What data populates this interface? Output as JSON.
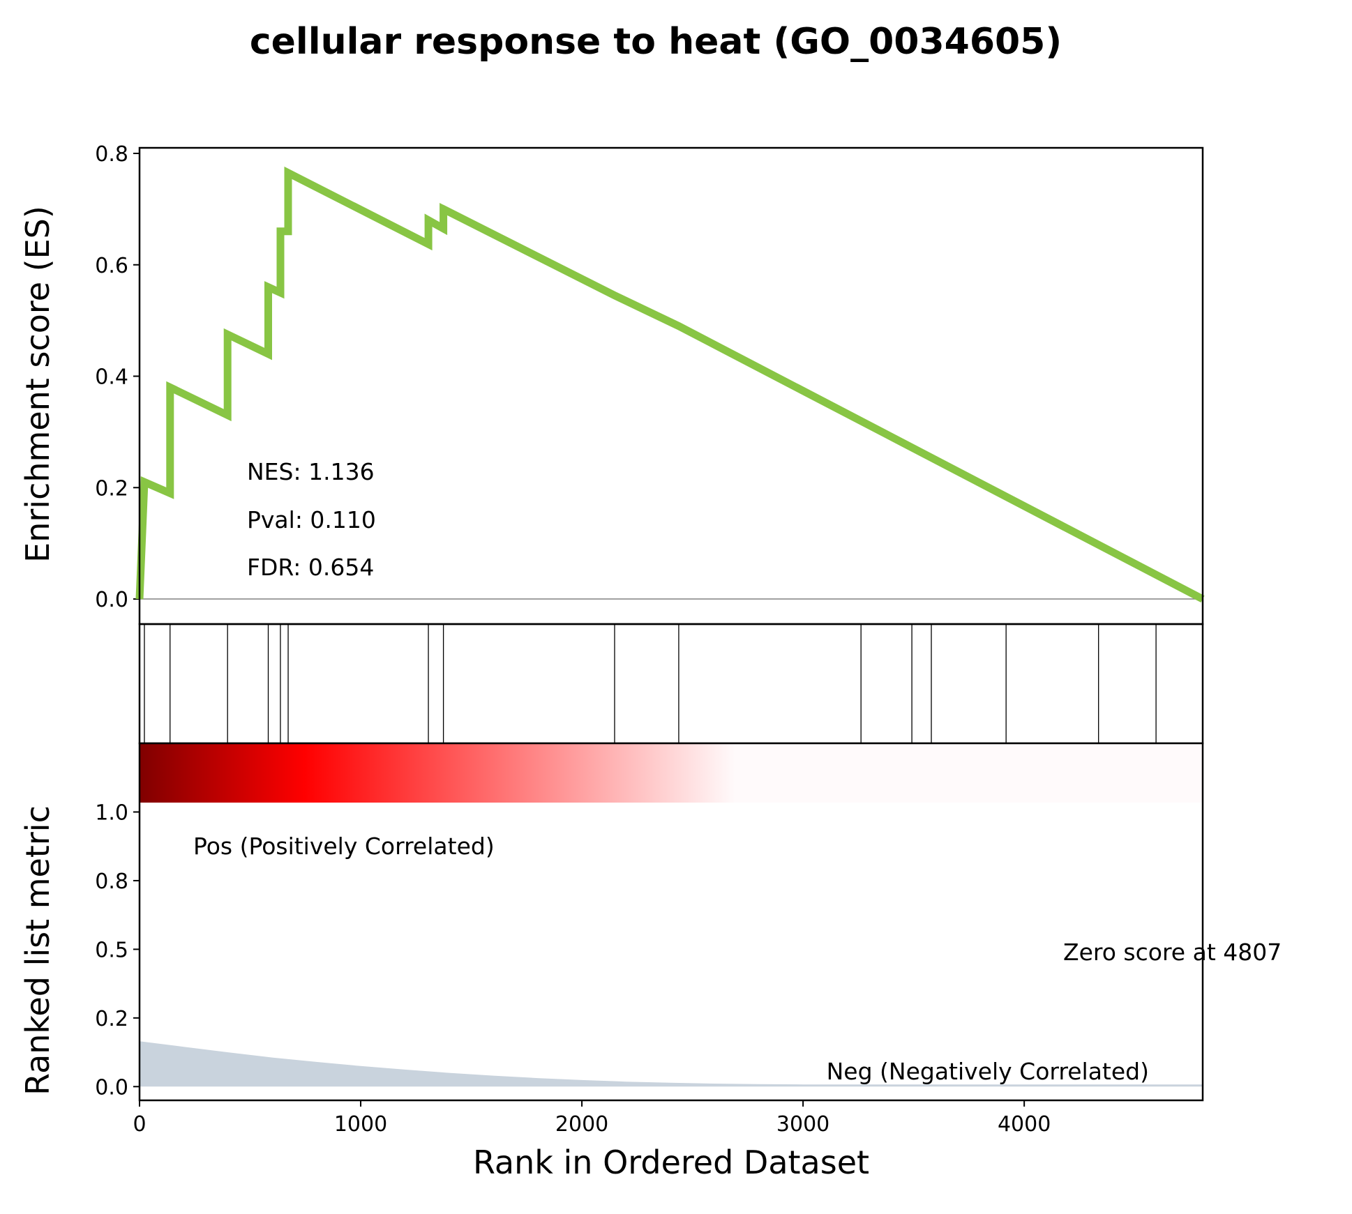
{
  "chart_data": {
    "type": "line",
    "title": "cellular response to heat (GO_0034605)",
    "xlabel": "Rank in Ordered Dataset",
    "es_panel": {
      "ylabel": "Enrichment score (ES)",
      "ylim": [
        -0.045,
        0.81
      ],
      "yticks": [
        0.0,
        0.2,
        0.4,
        0.6,
        0.8
      ],
      "ytick_labels": [
        "0.0",
        "0.2",
        "0.4",
        "0.6",
        "0.8"
      ],
      "line_color": "#88c544",
      "zero_line_color": "#808080",
      "series": [
        {
          "x": [
            0,
            22,
            22,
            138,
            138,
            398,
            398,
            582,
            582,
            637,
            637,
            672,
            672,
            1306,
            1306,
            1374,
            1374,
            2148,
            2438,
            4807
          ],
          "y": [
            0.0,
            0.21,
            0.21,
            0.19,
            0.38,
            0.33,
            0.475,
            0.44,
            0.56,
            0.55,
            0.66,
            0.66,
            0.765,
            0.637,
            0.68,
            0.665,
            0.7,
            0.545,
            0.49,
            0.0
          ]
        }
      ],
      "annotations": [
        "NES: 1.136",
        "Pval: 0.110",
        "FDR: 0.654"
      ]
    },
    "hits": [
      22,
      138,
      398,
      582,
      637,
      672,
      1306,
      1374,
      2148,
      2438,
      3262,
      3492,
      3580,
      3918,
      4336,
      4596
    ],
    "metric_panel": {
      "ylabel": "Ranked list metric",
      "ylim": [
        -0.05,
        1.25
      ],
      "yticks": [
        0.0,
        0.25,
        0.5,
        0.75,
        1.0
      ],
      "ytick_labels": [
        "0.0",
        "0.2",
        "0.5",
        "0.8",
        "1.0"
      ],
      "fill_color": "#c9d3dd",
      "metric": {
        "x": [
          0,
          200,
          400,
          600,
          800,
          1000,
          1200,
          1400,
          1600,
          1800,
          2000,
          2200,
          2400,
          2600,
          2800,
          3000,
          4807
        ],
        "y": [
          0.165,
          0.145,
          0.125,
          0.106,
          0.09,
          0.075,
          0.062,
          0.05,
          0.04,
          0.031,
          0.024,
          0.018,
          0.014,
          0.011,
          0.009,
          0.008,
          0.008
        ]
      },
      "heatmap_colors": [
        "#800000",
        "#ff0000",
        "#ffffff",
        "#fffafb"
      ],
      "pos_label": "Pos (Positively Correlated)",
      "pos_color": "#ff0000",
      "neg_label": "Neg (Negatively Correlated)",
      "neg_color": "#0000ff",
      "zero_label": "Zero score at 4807"
    },
    "xlim": [
      0,
      4807
    ],
    "xticks": [
      0,
      1000,
      2000,
      3000,
      4000
    ],
    "xtick_labels": [
      "0",
      "1000",
      "2000",
      "3000",
      "4000"
    ],
    "grid": false
  }
}
